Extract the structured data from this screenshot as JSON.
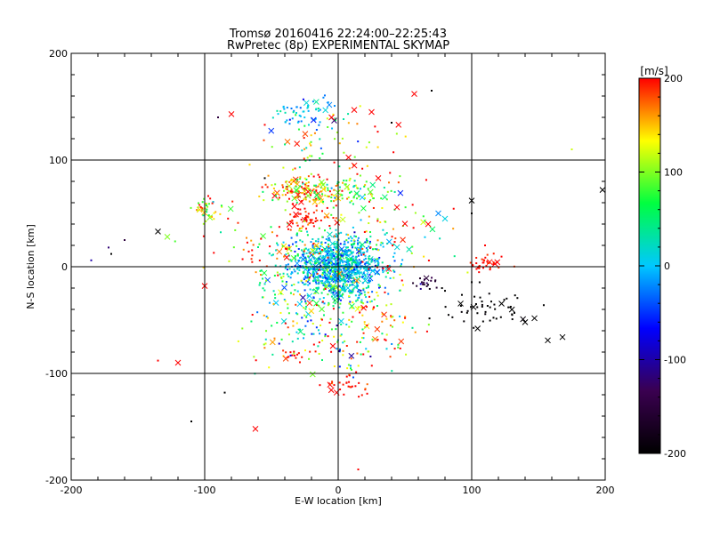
{
  "chart_data": {
    "type": "scatter",
    "title": "Tromsø 20160416 22:24:00–22:25:43",
    "subtitle": "RwPretec (8p) EXPERIMENTAL SKYMAP",
    "xlabel": "E-W location [km]",
    "ylabel": "N-S location [km]",
    "xlim": [
      -200,
      200
    ],
    "ylim": [
      -200,
      200
    ],
    "xticks": [
      -200,
      -100,
      0,
      100,
      200
    ],
    "yticks": [
      -200,
      -100,
      0,
      100,
      200
    ],
    "xtick_labels": [
      "-200",
      "-100",
      "0",
      "100",
      "200"
    ],
    "ytick_labels": [
      "-200",
      "-100",
      "0",
      "100",
      "200"
    ],
    "grid_lines": [
      -100,
      0,
      100
    ],
    "grid": true,
    "colorbar": {
      "label": "[m/s]",
      "range": [
        -200,
        200
      ],
      "ticks": [
        200,
        100,
        0,
        -100,
        -200
      ],
      "tick_labels": [
        "200",
        "100",
        "0",
        "-100",
        "-200"
      ],
      "stops": [
        "#000000",
        "#3a0050",
        "#0000ff",
        "#00c8ff",
        "#00ff40",
        "#ffff00",
        "#ff0000"
      ]
    },
    "marker_types": [
      "dot",
      "x"
    ],
    "clusters": [
      {
        "x": 0,
        "y": 0,
        "sx": 16,
        "sy": 14,
        "n": 900,
        "v": 0,
        "vs": 35
      },
      {
        "x": -25,
        "y": -15,
        "sx": 20,
        "sy": 25,
        "n": 140,
        "v": 60,
        "vs": 60
      },
      {
        "x": -25,
        "y": 72,
        "sx": 14,
        "sy": 6,
        "n": 130,
        "v": 150,
        "vs": 50
      },
      {
        "x": 10,
        "y": 72,
        "sx": 15,
        "sy": 7,
        "n": 80,
        "v": 90,
        "vs": 60
      },
      {
        "x": -22,
        "y": 47,
        "sx": 8,
        "sy": 5,
        "n": 50,
        "v": 200,
        "vs": 15
      },
      {
        "x": -28,
        "y": 145,
        "sx": 12,
        "sy": 7,
        "n": 60,
        "v": -10,
        "vs": 25
      },
      {
        "x": -98,
        "y": 54,
        "sx": 6,
        "sy": 5,
        "n": 40,
        "v": 120,
        "vs": 50
      },
      {
        "x": 110,
        "y": 2,
        "sx": 6,
        "sy": 4,
        "n": 35,
        "v": 200,
        "vs": 10
      },
      {
        "x": 110,
        "y": -38,
        "sx": 18,
        "sy": 10,
        "n": 55,
        "v": -200,
        "vs": 5
      },
      {
        "x": 65,
        "y": -15,
        "sx": 6,
        "sy": 4,
        "n": 20,
        "v": -150,
        "vs": 20
      },
      {
        "x": 5,
        "y": -112,
        "sx": 8,
        "sy": 5,
        "n": 30,
        "v": 200,
        "vs": 15
      },
      {
        "x": -20,
        "y": -55,
        "sx": 25,
        "sy": 25,
        "n": 120,
        "v": 80,
        "vs": 80
      },
      {
        "x": 30,
        "y": -45,
        "sx": 15,
        "sy": 20,
        "n": 80,
        "v": 120,
        "vs": 70
      },
      {
        "x": -10,
        "y": 110,
        "sx": 25,
        "sy": 20,
        "n": 70,
        "v": 120,
        "vs": 80
      },
      {
        "x": 20,
        "y": 30,
        "sx": 30,
        "sy": 25,
        "n": 120,
        "v": 120,
        "vs": 80
      },
      {
        "x": -40,
        "y": 20,
        "sx": 30,
        "sy": 25,
        "n": 90,
        "v": 150,
        "vs": 60
      },
      {
        "x": -32,
        "y": -82,
        "sx": 5,
        "sy": 3,
        "n": 15,
        "v": 200,
        "vs": 10
      },
      {
        "x": 15,
        "y": -80,
        "sx": 20,
        "sy": 12,
        "n": 30,
        "v": 80,
        "vs": 100
      }
    ],
    "isolated_points": [
      {
        "x": -185,
        "y": 6,
        "v": -100,
        "m": "dot"
      },
      {
        "x": -172,
        "y": 18,
        "v": -120,
        "m": "dot"
      },
      {
        "x": -170,
        "y": 12,
        "v": -200,
        "m": "dot"
      },
      {
        "x": -160,
        "y": 25,
        "v": -150,
        "m": "dot"
      },
      {
        "x": -135,
        "y": 33,
        "v": -200,
        "m": "x"
      },
      {
        "x": -128,
        "y": 28,
        "v": 100,
        "m": "x"
      },
      {
        "x": -120,
        "y": -90,
        "v": 200,
        "m": "x"
      },
      {
        "x": -135,
        "y": -88,
        "v": 200,
        "m": "dot"
      },
      {
        "x": -110,
        "y": -145,
        "v": -200,
        "m": "dot"
      },
      {
        "x": -100,
        "y": -18,
        "v": 200,
        "m": "x"
      },
      {
        "x": -85,
        "y": -118,
        "v": -200,
        "m": "dot"
      },
      {
        "x": -62,
        "y": -152,
        "v": 200,
        "m": "x"
      },
      {
        "x": 15,
        "y": -190,
        "v": 200,
        "m": "dot"
      },
      {
        "x": 57,
        "y": 162,
        "v": 200,
        "m": "x"
      },
      {
        "x": 70,
        "y": 165,
        "v": -200,
        "m": "dot"
      },
      {
        "x": 175,
        "y": 110,
        "v": 120,
        "m": "dot"
      },
      {
        "x": 198,
        "y": 72,
        "v": -200,
        "m": "x"
      },
      {
        "x": 168,
        "y": -66,
        "v": -200,
        "m": "x"
      },
      {
        "x": 157,
        "y": -69,
        "v": -200,
        "m": "x"
      },
      {
        "x": 140,
        "y": -52,
        "v": -200,
        "m": "x"
      },
      {
        "x": 100,
        "y": 62,
        "v": -200,
        "m": "x"
      },
      {
        "x": 100,
        "y": 50,
        "v": -200,
        "m": "dot"
      },
      {
        "x": 75,
        "y": 50,
        "v": -20,
        "m": "x"
      },
      {
        "x": 80,
        "y": 45,
        "v": 10,
        "m": "x"
      },
      {
        "x": -90,
        "y": 140,
        "v": -150,
        "m": "dot"
      },
      {
        "x": -80,
        "y": 143,
        "v": 200,
        "m": "x"
      },
      {
        "x": -55,
        "y": 133,
        "v": 200,
        "m": "dot"
      },
      {
        "x": 12,
        "y": 147,
        "v": 200,
        "m": "x"
      },
      {
        "x": 25,
        "y": 145,
        "v": 200,
        "m": "x"
      },
      {
        "x": -3,
        "y": 137,
        "v": -120,
        "m": "x"
      },
      {
        "x": -5,
        "y": 140,
        "v": 200,
        "m": "x"
      },
      {
        "x": -55,
        "y": 83,
        "v": -200,
        "m": "dot"
      },
      {
        "x": 40,
        "y": 135,
        "v": -200,
        "m": "dot"
      },
      {
        "x": 30,
        "y": 83,
        "v": 200,
        "m": "x"
      },
      {
        "x": 110,
        "y": 20,
        "v": 200,
        "m": "dot"
      }
    ]
  }
}
